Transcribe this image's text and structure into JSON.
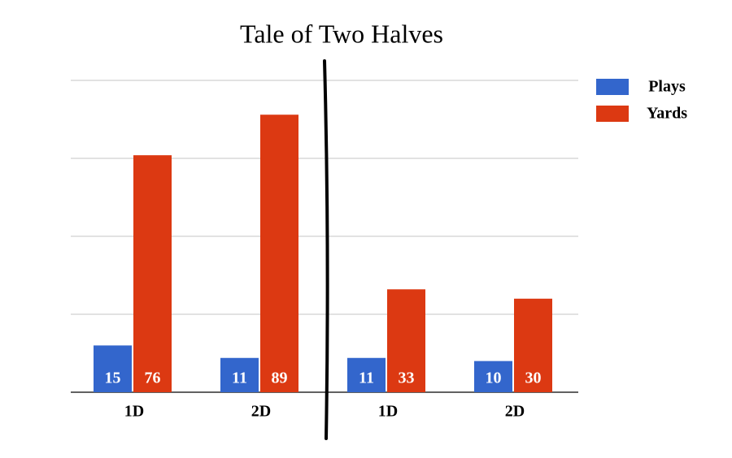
{
  "chart_data": {
    "type": "bar",
    "title": "Tale of Two Halves",
    "categories": [
      "1D",
      "2D",
      "1D",
      "2D"
    ],
    "series": [
      {
        "name": "Plays",
        "color": "#3366cc",
        "values": [
          15,
          11,
          11,
          10
        ]
      },
      {
        "name": "Yards",
        "color": "#dc3912",
        "values": [
          76,
          89,
          33,
          30
        ]
      }
    ],
    "ylim": [
      0,
      100
    ],
    "yticks": [
      0,
      25,
      50,
      75,
      100
    ],
    "grid": true,
    "legend": "right"
  }
}
